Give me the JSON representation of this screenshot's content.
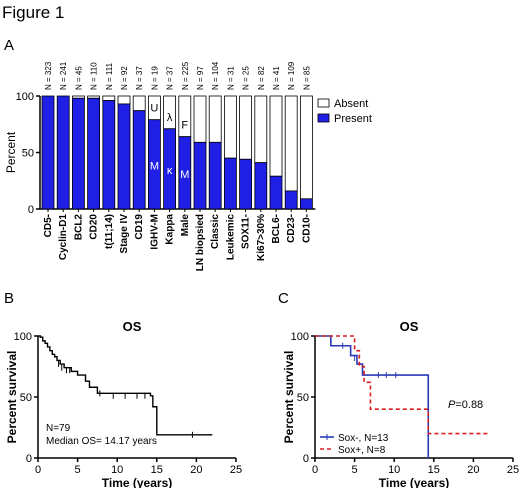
{
  "figure_title": "Figure 1",
  "panel_letters": {
    "a": "A",
    "b": "B",
    "c": "C"
  },
  "colors": {
    "present": "#1f1fe6",
    "absent": "#ffffff",
    "sox_neg": "#2a3ab8",
    "sox_pos": "#d81e1e",
    "axis": "#000000"
  },
  "chart_data": [
    {
      "panel": "A",
      "type": "bar",
      "stacked": true,
      "categories": [
        "CD5-",
        "Cyclin-D1",
        "BCL2",
        "CD20",
        "t(11;14)",
        "Stage IV",
        "CD19",
        "IGHV-M",
        "Kappa",
        "Male",
        "LN biopsied",
        "Classic",
        "Leukemic",
        "SOX11-",
        "Ki67>30%",
        "BCL6-",
        "CD23-",
        "CD10-"
      ],
      "n_labels": [
        "N = 323",
        "N = 241",
        "N = 45",
        "N = 110",
        "N = 111",
        "N = 92",
        "N = 37",
        "N = 19",
        "N = 37",
        "N = 225",
        "N = 97",
        "N = 104",
        "N = 31",
        "N = 25",
        "N = 82",
        "N = 41",
        "N = 109",
        "N = 85"
      ],
      "series": [
        {
          "name": "Present",
          "values": [
            100,
            100,
            98,
            98,
            96,
            93,
            87,
            79,
            71,
            64,
            59,
            59,
            45,
            44,
            41,
            29,
            16,
            9
          ]
        },
        {
          "name": "Absent",
          "values": [
            0,
            0,
            2,
            2,
            4,
            7,
            13,
            21,
            29,
            36,
            41,
            41,
            55,
            56,
            59,
            71,
            84,
            91
          ]
        }
      ],
      "annotations": [
        {
          "category": "IGHV-M",
          "upper": "U",
          "lower": "M"
        },
        {
          "category": "Kappa",
          "upper": "λ",
          "lower": "κ"
        },
        {
          "category": "Male",
          "upper": "F",
          "lower": "M"
        }
      ],
      "ylabel": "Percent",
      "ylim": [
        0,
        100
      ],
      "yticks": [
        0,
        50,
        100
      ],
      "legend_position": "right"
    },
    {
      "panel": "B",
      "type": "line",
      "title": "OS",
      "xlabel": "Time (years)",
      "ylabel": "Percent survival",
      "xlim": [
        0,
        25
      ],
      "ylim": [
        0,
        100
      ],
      "xticks": [
        0,
        5,
        10,
        15,
        20,
        25
      ],
      "yticks": [
        0,
        50,
        100
      ],
      "steps": [
        [
          0,
          100
        ],
        [
          0.3,
          99
        ],
        [
          0.6,
          96
        ],
        [
          0.9,
          94
        ],
        [
          1.2,
          91
        ],
        [
          1.5,
          88
        ],
        [
          1.8,
          85
        ],
        [
          2.1,
          83
        ],
        [
          2.4,
          80
        ],
        [
          2.8,
          77
        ],
        [
          3.3,
          74
        ],
        [
          4.2,
          71
        ],
        [
          5.0,
          68
        ],
        [
          6.0,
          63
        ],
        [
          6.5,
          58
        ],
        [
          7.5,
          53
        ],
        [
          14.2,
          51
        ],
        [
          14.5,
          42
        ],
        [
          15.0,
          19
        ],
        [
          22.0,
          19
        ]
      ],
      "censors": [
        [
          2.6,
          77
        ],
        [
          3.0,
          74
        ],
        [
          3.6,
          72
        ],
        [
          4.0,
          72
        ],
        [
          7.8,
          53
        ],
        [
          9.5,
          51
        ],
        [
          11.0,
          51
        ],
        [
          12.5,
          51
        ],
        [
          13.5,
          51
        ],
        [
          19.5,
          19
        ]
      ],
      "notes": [
        "N=79",
        "Median OS= 14.17 years"
      ]
    },
    {
      "panel": "C",
      "type": "line",
      "title": "OS",
      "xlabel": "Time (years)",
      "ylabel": "Percent survival",
      "xlim": [
        0,
        25
      ],
      "ylim": [
        0,
        100
      ],
      "xticks": [
        0,
        5,
        10,
        15,
        20,
        25
      ],
      "yticks": [
        0,
        50,
        100
      ],
      "p_label": "P",
      "p_value": "=0.88",
      "series": [
        {
          "name": "Sox-, N=13",
          "color": "#2a3ab8",
          "dashed": false,
          "steps": [
            [
              0,
              100
            ],
            [
              2.0,
              92
            ],
            [
              4.5,
              84
            ],
            [
              5.3,
              77
            ],
            [
              6.0,
              68
            ],
            [
              14.3,
              68
            ],
            [
              14.3,
              0
            ]
          ],
          "censors": [
            [
              3.5,
              92
            ],
            [
              5.0,
              82
            ],
            [
              8.0,
              68
            ],
            [
              9.0,
              68
            ],
            [
              10.2,
              68
            ]
          ]
        },
        {
          "name": "Sox+, N=8",
          "color": "#d81e1e",
          "dashed": true,
          "steps": [
            [
              0,
              100
            ],
            [
              5.0,
              88
            ],
            [
              5.6,
              75
            ],
            [
              6.2,
              62
            ],
            [
              7.0,
              40
            ],
            [
              14.3,
              40
            ],
            [
              14.3,
              20
            ],
            [
              22.0,
              20
            ]
          ],
          "censors": []
        }
      ],
      "legend_position": "bottom-left"
    }
  ]
}
